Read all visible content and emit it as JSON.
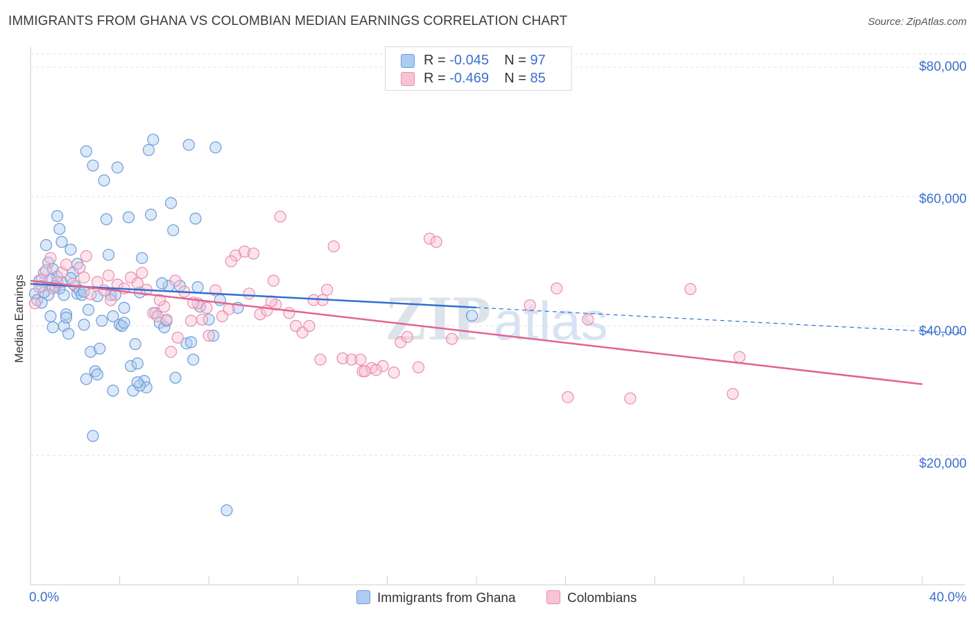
{
  "header": {
    "title": "IMMIGRANTS FROM GHANA VS COLOMBIAN MEDIAN EARNINGS CORRELATION CHART",
    "source": "Source: ZipAtlas.com"
  },
  "legend_top": {
    "rows": [
      {
        "r_label": "R =",
        "r_value": "-0.045",
        "n_label": "N =",
        "n_value": "97"
      },
      {
        "r_label": "R =",
        "r_value": "-0.469",
        "n_label": "N =",
        "n_value": "85"
      }
    ]
  },
  "legend_bottom": {
    "items": [
      "Immigrants from Ghana",
      "Colombians"
    ]
  },
  "watermark": {
    "zip": "ZIP",
    "atlas": "atlas"
  },
  "colors": {
    "ghana_fill": "#aecbf0",
    "ghana_stroke": "#6c9bd9",
    "ghana_line": "#2f6fd0",
    "colombian_fill": "#f8c4d4",
    "colombian_stroke": "#e98bab",
    "colombian_line": "#e2638f",
    "axis_text": "#3b6fcf",
    "grid": "#e3e3e3"
  },
  "chart_data": {
    "type": "scatter",
    "title": "IMMIGRANTS FROM GHANA VS COLOMBIAN MEDIAN EARNINGS CORRELATION CHART",
    "xlabel": "",
    "ylabel": "Median Earnings",
    "xlim": [
      0,
      40
    ],
    "ylim": [
      0,
      80000
    ],
    "x_tick_labels": [
      "0.0%",
      "40.0%"
    ],
    "y_ticks": [
      20000,
      40000,
      60000,
      80000
    ],
    "y_tick_labels": [
      "$20,000",
      "$40,000",
      "$60,000",
      "$80,000"
    ],
    "grid": true,
    "legend_position": "top-center",
    "series": [
      {
        "name": "Immigrants from Ghana",
        "stats": {
          "R": -0.045,
          "N": 97
        },
        "trend": {
          "x0": 0,
          "y0": 46500,
          "x1": 40,
          "y1": 39200,
          "solid_until_x": 20
        },
        "points": [
          [
            0.2,
            45000
          ],
          [
            0.3,
            44000
          ],
          [
            0.4,
            47000
          ],
          [
            0.5,
            46200
          ],
          [
            0.6,
            48200
          ],
          [
            0.7,
            52500
          ],
          [
            0.8,
            44800
          ],
          [
            0.9,
            41500
          ],
          [
            1.0,
            39800
          ],
          [
            1.1,
            46000
          ],
          [
            1.2,
            57000
          ],
          [
            1.3,
            55000
          ],
          [
            1.4,
            46800
          ],
          [
            1.5,
            44800
          ],
          [
            1.6,
            41800
          ],
          [
            1.8,
            51800
          ],
          [
            1.9,
            48200
          ],
          [
            2.0,
            46200
          ],
          [
            2.1,
            45000
          ],
          [
            2.2,
            45500
          ],
          [
            2.4,
            40200
          ],
          [
            2.5,
            67000
          ],
          [
            2.6,
            42500
          ],
          [
            2.7,
            36000
          ],
          [
            2.8,
            64800
          ],
          [
            2.9,
            33000
          ],
          [
            3.0,
            32500
          ],
          [
            3.1,
            36500
          ],
          [
            3.2,
            40800
          ],
          [
            3.3,
            62500
          ],
          [
            3.4,
            56500
          ],
          [
            3.5,
            51000
          ],
          [
            3.6,
            44800
          ],
          [
            3.7,
            41500
          ],
          [
            3.8,
            44800
          ],
          [
            3.9,
            64500
          ],
          [
            4.0,
            40200
          ],
          [
            4.1,
            40000
          ],
          [
            4.2,
            40500
          ],
          [
            4.4,
            56800
          ],
          [
            4.5,
            33800
          ],
          [
            4.6,
            30000
          ],
          [
            4.7,
            37200
          ],
          [
            4.8,
            34200
          ],
          [
            4.9,
            45200
          ],
          [
            5.0,
            50500
          ],
          [
            5.1,
            31500
          ],
          [
            5.2,
            30500
          ],
          [
            5.3,
            67200
          ],
          [
            5.4,
            57200
          ],
          [
            5.5,
            68800
          ],
          [
            5.6,
            42000
          ],
          [
            5.8,
            40500
          ],
          [
            6.0,
            39800
          ],
          [
            6.2,
            46200
          ],
          [
            6.3,
            59000
          ],
          [
            6.4,
            54800
          ],
          [
            6.5,
            32000
          ],
          [
            5.9,
            46600
          ],
          [
            6.1,
            40800
          ],
          [
            7.0,
            37300
          ],
          [
            6.7,
            46200
          ],
          [
            7.2,
            37500
          ],
          [
            7.5,
            46000
          ],
          [
            8.0,
            41000
          ],
          [
            8.5,
            44000
          ],
          [
            7.3,
            34800
          ],
          [
            7.6,
            43000
          ],
          [
            8.2,
            38500
          ],
          [
            3.7,
            30000
          ],
          [
            2.8,
            23000
          ],
          [
            2.5,
            31800
          ],
          [
            1.5,
            40000
          ],
          [
            1.7,
            38800
          ],
          [
            2.3,
            44800
          ],
          [
            0.5,
            43600
          ],
          [
            0.8,
            49800
          ],
          [
            1.0,
            48800
          ],
          [
            1.2,
            47600
          ],
          [
            1.4,
            53000
          ],
          [
            0.6,
            45200
          ],
          [
            0.9,
            47200
          ],
          [
            1.1,
            46200
          ],
          [
            1.3,
            45800
          ],
          [
            1.6,
            41300
          ],
          [
            1.8,
            47400
          ],
          [
            2.1,
            49600
          ],
          [
            2.4,
            45300
          ],
          [
            3.0,
            44600
          ],
          [
            4.2,
            42800
          ],
          [
            4.9,
            30800
          ],
          [
            4.8,
            31300
          ],
          [
            7.1,
            68000
          ],
          [
            8.3,
            67600
          ],
          [
            7.4,
            56600
          ],
          [
            9.3,
            42800
          ],
          [
            19.8,
            41600
          ],
          [
            8.8,
            11500
          ]
        ]
      },
      {
        "name": "Colombians",
        "stats": {
          "R": -0.469,
          "N": 85
        },
        "trend": {
          "x0": 0,
          "y0": 47000,
          "x1": 40,
          "y1": 31000
        },
        "points": [
          [
            0.2,
            43500
          ],
          [
            0.5,
            47200
          ],
          [
            0.7,
            48600
          ],
          [
            0.9,
            50500
          ],
          [
            1.0,
            45800
          ],
          [
            1.2,
            46800
          ],
          [
            1.4,
            48300
          ],
          [
            1.6,
            49500
          ],
          [
            1.9,
            46500
          ],
          [
            2.2,
            49000
          ],
          [
            2.4,
            47500
          ],
          [
            2.5,
            50800
          ],
          [
            2.7,
            44900
          ],
          [
            3.0,
            46800
          ],
          [
            3.3,
            45500
          ],
          [
            3.5,
            47800
          ],
          [
            3.6,
            44000
          ],
          [
            3.9,
            46400
          ],
          [
            4.2,
            45800
          ],
          [
            4.5,
            47500
          ],
          [
            4.8,
            46600
          ],
          [
            5.0,
            48200
          ],
          [
            5.2,
            45600
          ],
          [
            5.5,
            42000
          ],
          [
            5.7,
            41500
          ],
          [
            6.0,
            43000
          ],
          [
            6.3,
            36000
          ],
          [
            6.6,
            38200
          ],
          [
            6.9,
            45300
          ],
          [
            7.2,
            40800
          ],
          [
            7.5,
            43500
          ],
          [
            7.7,
            41000
          ],
          [
            7.9,
            42800
          ],
          [
            8.3,
            45500
          ],
          [
            8.6,
            41500
          ],
          [
            8.9,
            42600
          ],
          [
            9.2,
            50900
          ],
          [
            9.6,
            51500
          ],
          [
            10.0,
            51200
          ],
          [
            10.3,
            41800
          ],
          [
            10.6,
            42400
          ],
          [
            10.9,
            47000
          ],
          [
            11.2,
            56900
          ],
          [
            11.6,
            42000
          ],
          [
            11.9,
            40000
          ],
          [
            12.2,
            39000
          ],
          [
            12.7,
            44000
          ],
          [
            13.1,
            44000
          ],
          [
            13.6,
            52300
          ],
          [
            14.0,
            35000
          ],
          [
            14.4,
            34800
          ],
          [
            14.9,
            33000
          ],
          [
            15.3,
            33500
          ],
          [
            15.8,
            33800
          ],
          [
            16.3,
            32800
          ],
          [
            16.6,
            37500
          ],
          [
            16.9,
            38300
          ],
          [
            17.4,
            33600
          ],
          [
            17.9,
            53500
          ],
          [
            18.2,
            53000
          ],
          [
            18.9,
            38000
          ],
          [
            5.8,
            44000
          ],
          [
            6.5,
            47000
          ],
          [
            7.3,
            43600
          ],
          [
            8.0,
            38500
          ],
          [
            9.0,
            50000
          ],
          [
            9.8,
            45000
          ],
          [
            11.0,
            43300
          ],
          [
            12.5,
            40000
          ],
          [
            13.3,
            45600
          ],
          [
            14.8,
            34800
          ],
          [
            15.5,
            33200
          ],
          [
            22.4,
            43200
          ],
          [
            23.6,
            45800
          ],
          [
            24.1,
            29000
          ],
          [
            25.0,
            41000
          ],
          [
            26.9,
            28800
          ],
          [
            29.6,
            45700
          ],
          [
            31.5,
            29500
          ],
          [
            31.8,
            35200
          ],
          [
            10.8,
            43800
          ],
          [
            6.1,
            41000
          ],
          [
            13.0,
            34800
          ],
          [
            15.0,
            33000
          ],
          [
            0.4,
            46000
          ]
        ]
      }
    ]
  }
}
